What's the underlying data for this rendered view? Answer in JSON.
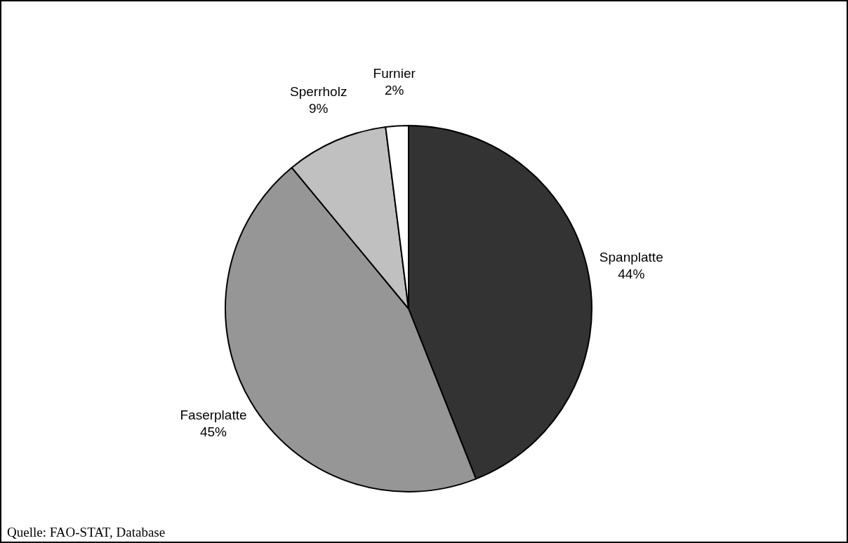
{
  "chart_data": {
    "type": "pie",
    "categories": [
      "Spanplatte",
      "Faserplatte",
      "Sperrholz",
      "Furnier"
    ],
    "values": [
      44,
      45,
      9,
      2
    ],
    "colors": [
      "#333333",
      "#969696",
      "#c0c0c0",
      "#ffffff"
    ],
    "value_labels": [
      "44%",
      "45%",
      "9%",
      "2%"
    ],
    "legend": false,
    "annotations": [
      "Quelle: FAO-STAT, Database"
    ]
  }
}
